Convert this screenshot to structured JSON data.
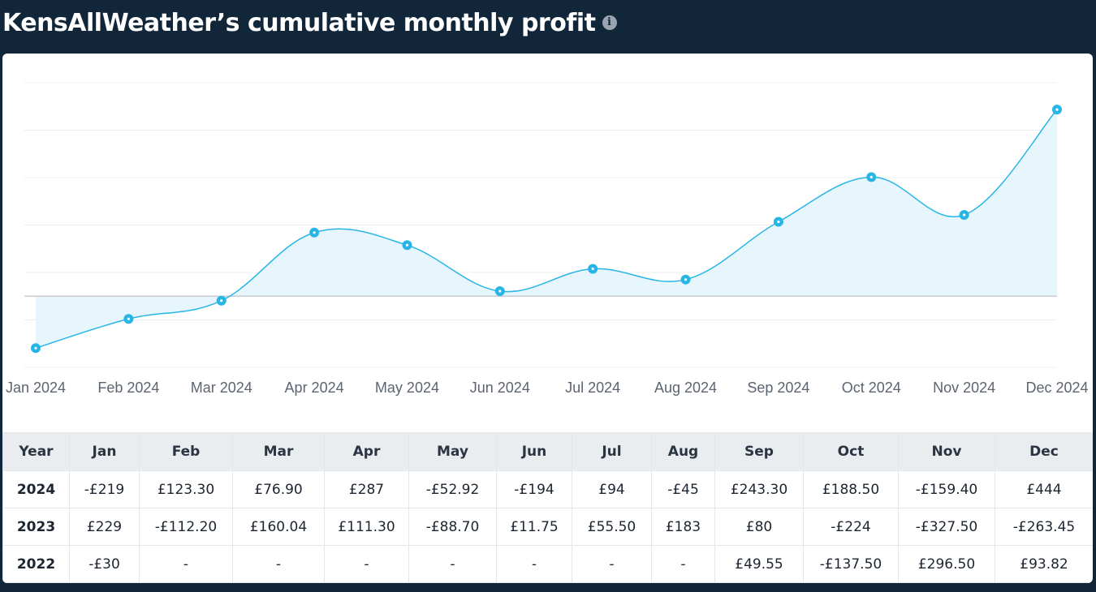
{
  "header": {
    "title": "KensAllWeather’s cumulative monthly profit",
    "info_icon": "info-icon",
    "info_glyph": "i"
  },
  "colors": {
    "background": "#12263a",
    "line": "#27b5e6",
    "area": "#e6f6fc",
    "zero_line": "#c8ccd0"
  },
  "chart_data": {
    "type": "area",
    "x": [
      "Jan 2024",
      "Feb 2024",
      "Mar 2024",
      "Apr 2024",
      "May 2024",
      "Jun 2024",
      "Jul 2024",
      "Aug 2024",
      "Sep 2024",
      "Oct 2024",
      "Nov 2024",
      "Dec 2024"
    ],
    "series": [
      {
        "values": [
          -219,
          -95.7,
          -18.8,
          268.2,
          215.28,
          21.28,
          115.28,
          70.28,
          313.58,
          502.08,
          342.68,
          786.68
        ]
      }
    ],
    "ylim": [
      -300,
      900
    ],
    "grid": true,
    "legend": "none",
    "title": "",
    "xlabel": "",
    "ylabel": ""
  },
  "table": {
    "headers": [
      "Year",
      "Jan",
      "Feb",
      "Mar",
      "Apr",
      "May",
      "Jun",
      "Jul",
      "Aug",
      "Sep",
      "Oct",
      "Nov",
      "Dec"
    ],
    "rows": [
      {
        "year": "2024",
        "cells": [
          "-£219",
          "£123.30",
          "£76.90",
          "£287",
          "-£52.92",
          "-£194",
          "£94",
          "-£45",
          "£243.30",
          "£188.50",
          "-£159.40",
          "£444"
        ]
      },
      {
        "year": "2023",
        "cells": [
          "£229",
          "-£112.20",
          "£160.04",
          "£111.30",
          "-£88.70",
          "£11.75",
          "£55.50",
          "£183",
          "£80",
          "-£224",
          "-£327.50",
          "-£263.45"
        ]
      },
      {
        "year": "2022",
        "cells": [
          "-£30",
          "-",
          "-",
          "-",
          "-",
          "-",
          "-",
          "-",
          "£49.55",
          "-£137.50",
          "£296.50",
          "£93.82"
        ]
      }
    ]
  }
}
